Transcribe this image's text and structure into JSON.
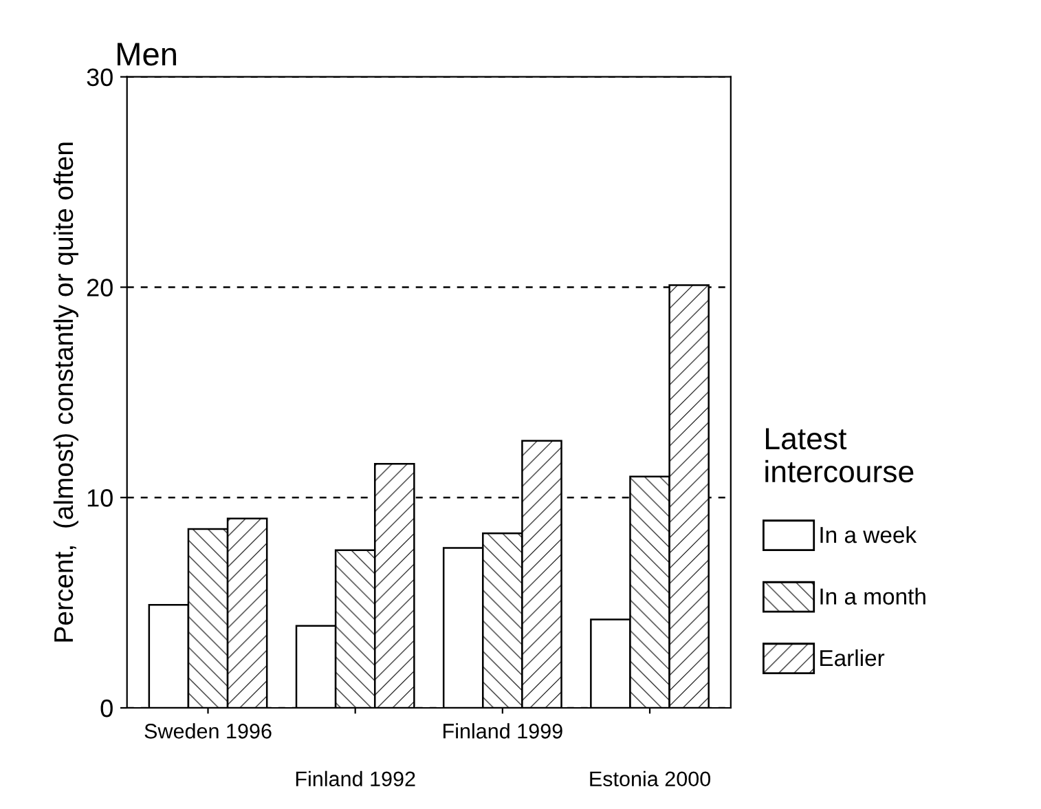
{
  "chart_data": {
    "type": "bar",
    "title": "Men",
    "ylabel": "Percent,  (almost) constantly or quite often",
    "legend_title": "Latest\nintercourse",
    "categories": [
      "Sweden 1996",
      "Finland 1992",
      "Finland 1999",
      "Estonia 2000"
    ],
    "series": [
      {
        "name": "In a week",
        "color": "#ffffff",
        "values": [
          4.9,
          3.9,
          7.6,
          4.2
        ]
      },
      {
        "name": "In a month",
        "color": "#000000",
        "values": [
          8.5,
          7.5,
          8.3,
          11.0
        ]
      },
      {
        "name": "Earlier",
        "color": "#000000",
        "values": [
          9.0,
          11.6,
          12.7,
          20.1
        ]
      }
    ],
    "ylim": [
      0,
      30
    ],
    "yticks": [
      0,
      10,
      20,
      30
    ],
    "grid": "y",
    "legend": "right"
  }
}
